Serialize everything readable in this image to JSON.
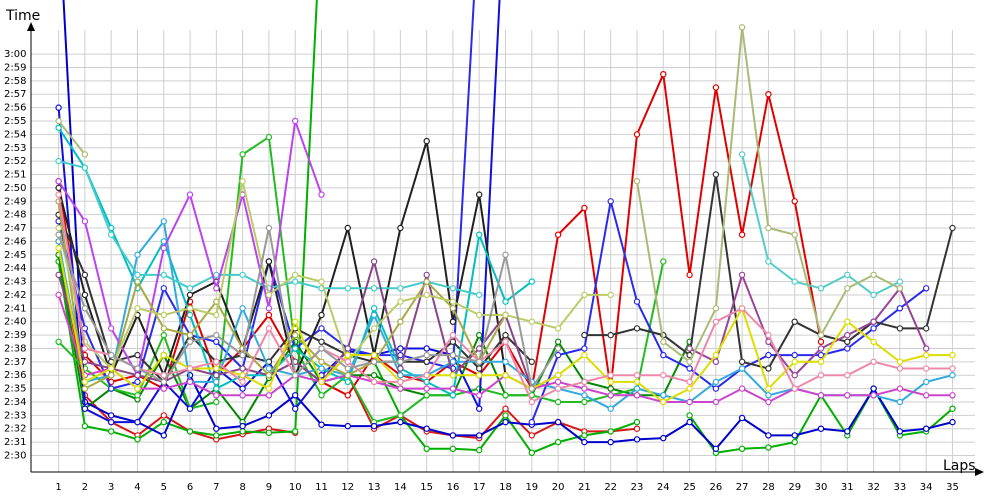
{
  "chart_data": {
    "type": "line",
    "ylabel": "Time",
    "xlabel": "Laps",
    "x": [
      1,
      2,
      3,
      4,
      5,
      6,
      7,
      8,
      9,
      10,
      11,
      12,
      13,
      14,
      15,
      16,
      17,
      18,
      19,
      20,
      21,
      22,
      23,
      24,
      25,
      26,
      27,
      28,
      29,
      30,
      31,
      32,
      33,
      34,
      35
    ],
    "y_tick_labels": [
      "2:30",
      "2:31",
      "2:32",
      "2:33",
      "2:34",
      "2:35",
      "2:36",
      "2:37",
      "2:38",
      "2:39",
      "2:40",
      "2:41",
      "2:42",
      "2:43",
      "2:44",
      "2:45",
      "2:46",
      "2:47",
      "2:48",
      "2:49",
      "2:50",
      "2:51",
      "2:52",
      "2:53",
      "2:54",
      "2:55",
      "2:56",
      "2:57",
      "2:58",
      "2:59",
      "3:00"
    ],
    "ylim_seconds": [
      150,
      180
    ],
    "grid": true,
    "series": [
      {
        "color": "#e00000",
        "values": [
          170.5,
          157.5,
          155.5,
          156,
          155,
          161.5,
          156,
          158,
          160.5,
          157,
          155.5,
          154.5,
          157.5,
          156,
          155.5,
          157,
          156,
          158.5,
          155,
          166.5,
          168.5,
          155,
          174,
          178.5,
          163.5,
          177.5,
          166.5,
          177,
          169,
          158.5,
          null,
          null,
          null,
          null,
          null
        ]
      },
      {
        "color": "#d81818",
        "values": [
          166,
          154.5,
          152.5,
          151.5,
          153,
          151.8,
          151.2,
          151.6,
          152,
          151.7,
          null,
          156,
          152,
          153,
          151.8,
          151.5,
          151.3,
          153.5,
          151.5,
          152.5,
          151.8,
          151.8,
          152,
          null,
          null,
          null,
          null,
          null,
          null,
          null,
          null,
          null,
          null,
          null,
          null
        ]
      },
      {
        "color": "#00b000",
        "values": [
          164.5,
          152.2,
          151.8,
          151.2,
          152.5,
          151.8,
          151.5,
          151.8,
          151.7,
          151.8,
          191,
          null,
          157,
          153,
          150.5,
          150.5,
          150.4,
          153,
          150.2,
          151,
          151.5,
          151.8,
          152.5,
          null,
          153,
          150.2,
          150.5,
          150.6,
          151,
          154.5,
          151.5,
          155,
          151.5,
          151.8,
          153.5
        ]
      },
      {
        "color": "#008800",
        "values": [
          165,
          153.5,
          155,
          154.2,
          157.5,
          153.5,
          155,
          152.5,
          155.8,
          158.5,
          155.5,
          156,
          156,
          155,
          154.5,
          154.5,
          159,
          154.5,
          154.5,
          158.5,
          155.5,
          155,
          154.5,
          154.5,
          158.5,
          null,
          null,
          null,
          null,
          null,
          null,
          null,
          null,
          null,
          null
        ]
      },
      {
        "color": "#22bb22",
        "values": [
          158.5,
          156.5,
          155,
          154.5,
          159,
          153.5,
          154,
          172.5,
          173.8,
          158,
          154.5,
          156,
          152.5,
          153,
          154.5,
          154.5,
          155,
          154.5,
          154.5,
          154,
          154,
          154.5,
          155,
          164.5,
          null,
          null,
          null,
          null,
          null,
          null,
          null,
          null,
          null,
          null,
          null
        ]
      },
      {
        "color": "#0000cc",
        "values": [
          191,
          154,
          153,
          152.5,
          151.5,
          156,
          152,
          152.2,
          153,
          154.5,
          152.3,
          152.2,
          152.2,
          152.5,
          152,
          151.5,
          151.5,
          152.5,
          152.3,
          152.5,
          151,
          151,
          151.2,
          151.3,
          152.5,
          150.5,
          152.8,
          151.5,
          151.5,
          152,
          151.8,
          155,
          151.8,
          152,
          152.5
        ]
      },
      {
        "color": "#1010dd",
        "values": [
          176,
          153.5,
          152.5,
          152.5,
          155.5,
          153.5,
          156.5,
          155,
          157,
          153.5,
          156,
          157.8,
          157.5,
          158,
          158,
          157.5,
          153.5,
          193,
          null,
          null,
          null,
          null,
          null,
          null,
          null,
          null,
          null,
          null,
          null,
          null,
          null,
          null,
          null,
          null,
          null
        ]
      },
      {
        "color": "#2a2aee",
        "values": [
          167.5,
          159.5,
          155,
          155.5,
          162.5,
          159,
          158.5,
          156.5,
          164.5,
          158,
          159.5,
          158,
          157.5,
          157.5,
          157,
          156.5,
          191,
          null,
          152.5,
          157.5,
          158,
          169,
          161.5,
          157.5,
          156.5,
          155,
          156.5,
          157.5,
          157.5,
          157.5,
          158,
          159.5,
          161,
          162.5,
          null
        ]
      },
      {
        "color": "#202020",
        "values": [
          170,
          162,
          156,
          160.5,
          156,
          162,
          163,
          158,
          164.5,
          156,
          160.5,
          167,
          157.5,
          167,
          173.5,
          160,
          169.5,
          156,
          null,
          null,
          null,
          null,
          null,
          null,
          null,
          null,
          null,
          null,
          null,
          null,
          null,
          null,
          null,
          null,
          null
        ]
      },
      {
        "color": "#333333",
        "values": [
          168,
          163.5,
          157,
          157.5,
          155.5,
          159,
          157,
          157.5,
          157,
          159.5,
          158.5,
          157.5,
          157,
          157,
          157,
          158.5,
          156.5,
          159,
          157,
          null,
          159,
          159,
          159.5,
          159,
          157.5,
          171,
          157,
          156.5,
          160,
          159,
          158.5,
          160,
          159.5,
          159.5,
          167
        ]
      },
      {
        "color": "#00c0c0",
        "values": [
          174.5,
          171.5,
          167,
          162.5,
          166,
          160.5,
          155,
          156,
          156,
          158,
          156.5,
          155.5,
          161,
          156.5,
          155.5,
          154.5,
          166.5,
          161.5,
          163,
          null,
          null,
          null,
          null,
          null,
          null,
          null,
          null,
          null,
          null,
          null,
          null,
          null,
          null,
          null,
          null
        ]
      },
      {
        "color": "#33aadd",
        "values": [
          166,
          155.5,
          156,
          165,
          167.5,
          155.5,
          155.5,
          161,
          156.5,
          156,
          156.5,
          156,
          160.5,
          156,
          156,
          157,
          157,
          157,
          155.5,
          155,
          154.5,
          153.5,
          155,
          154.5,
          154,
          155.5,
          156.5,
          154.5,
          155,
          154.5,
          154.5,
          154.5,
          154,
          155.5,
          156
        ]
      },
      {
        "color": "#44cccc",
        "values": [
          172,
          171.5,
          166.5,
          163.5,
          163.5,
          162.5,
          163.5,
          163.5,
          162.5,
          163,
          162.5,
          162.5,
          162.5,
          162.5,
          163,
          162.5,
          162,
          null,
          null,
          null,
          null,
          null,
          null,
          null,
          null,
          null,
          null,
          null,
          null,
          null,
          null,
          null,
          null,
          null,
          null
        ]
      },
      {
        "color": "#55cccc",
        "values": [
          null,
          null,
          null,
          null,
          null,
          null,
          null,
          null,
          null,
          null,
          null,
          null,
          null,
          null,
          null,
          null,
          null,
          null,
          null,
          null,
          null,
          null,
          null,
          null,
          null,
          null,
          172.5,
          164.5,
          163,
          162.5,
          163.5,
          162,
          163,
          null,
          null
        ]
      },
      {
        "color": "#bb44ee",
        "values": [
          170.5,
          167.5,
          159.5,
          156,
          165.5,
          169.5,
          162.5,
          169.5,
          161,
          175,
          169.5,
          null,
          null,
          null,
          null,
          null,
          null,
          null,
          null,
          null,
          null,
          null,
          null,
          null,
          null,
          null,
          null,
          null,
          null,
          null,
          null,
          null,
          null,
          null,
          null
        ]
      },
      {
        "color": "#cc44cc",
        "values": [
          162,
          156,
          156.5,
          155,
          155,
          155.5,
          154.5,
          154.5,
          154.5,
          156,
          155.5,
          156,
          155.5,
          155,
          155,
          155,
          154.5,
          156,
          155,
          155.5,
          155,
          154.5,
          154.5,
          154,
          154,
          154,
          155,
          154,
          155,
          154.5,
          154.5,
          154.5,
          155,
          154.5,
          154.5
        ]
      },
      {
        "color": "#884488",
        "values": [
          163.5,
          157,
          156.5,
          156,
          155.5,
          156.5,
          156,
          156.5,
          156,
          157,
          155.5,
          158,
          164.5,
          156.5,
          163.5,
          156,
          158,
          160.5,
          155,
          156,
          null,
          null,
          null,
          null,
          null,
          null,
          null,
          null,
          null,
          null,
          null,
          null,
          null,
          null,
          null
        ]
      },
      {
        "color": "#994499",
        "values": [
          null,
          null,
          null,
          null,
          null,
          null,
          null,
          null,
          null,
          null,
          null,
          null,
          null,
          null,
          null,
          null,
          null,
          null,
          null,
          null,
          null,
          null,
          null,
          null,
          158,
          157,
          163.5,
          158.5,
          156,
          158,
          159,
          160,
          162.5,
          158,
          null
        ]
      },
      {
        "color": "#aaaa44",
        "values": [
          169,
          155,
          156,
          163,
          159.5,
          159,
          161.5,
          158,
          156,
          159,
          157,
          156,
          157,
          160,
          163,
          161,
          157,
          160.5,
          null,
          null,
          null,
          null,
          null,
          null,
          null,
          null,
          null,
          null,
          null,
          null,
          null,
          null,
          null,
          null,
          null
        ]
      },
      {
        "color": "#aabb77",
        "values": [
          175,
          172.5,
          null,
          null,
          null,
          null,
          null,
          null,
          null,
          null,
          null,
          null,
          null,
          null,
          null,
          null,
          null,
          null,
          null,
          null,
          null,
          null,
          170.5,
          158.5,
          157,
          161,
          182,
          167,
          166.5,
          159,
          162.5,
          163.5,
          162.5,
          null,
          null
        ]
      },
      {
        "color": "#bbcc66",
        "values": [
          167,
          158.5,
          156.5,
          161,
          160.5,
          161,
          160.5,
          170.5,
          162,
          163.5,
          163,
          157,
          159.5,
          161.5,
          162,
          161.5,
          160.5,
          160.5,
          160,
          159.5,
          162,
          162,
          null,
          null,
          null,
          null,
          null,
          null,
          null,
          null,
          null,
          null,
          null,
          null,
          null
        ]
      },
      {
        "color": "#dddd00",
        "values": [
          165.5,
          155.5,
          156.5,
          155,
          157.5,
          156.5,
          156.5,
          156,
          155,
          160,
          155.5,
          157.5,
          157.5,
          155.5,
          156,
          156,
          156,
          156,
          155,
          156,
          157.5,
          155.5,
          155.5,
          154,
          155,
          157.5,
          161,
          155,
          157,
          157,
          160,
          158.5,
          157,
          157.5,
          157.5
        ]
      },
      {
        "color": "#ee88aa",
        "values": [
          169.5,
          158,
          157.5,
          156.5,
          156,
          156.5,
          157,
          155.5,
          159.5,
          156,
          158,
          157,
          155.5,
          155.5,
          156,
          159,
          157,
          158.5,
          154,
          155,
          155.5,
          156,
          156,
          156,
          155.5,
          160,
          161,
          159,
          155,
          156,
          156,
          157,
          156.5,
          156.5,
          156.5
        ]
      },
      {
        "color": "#999999",
        "values": [
          166.5,
          161,
          157.5,
          156.5,
          155.5,
          158.5,
          159,
          157.5,
          167,
          156,
          158,
          156.5,
          157,
          157,
          157.5,
          157.5,
          157,
          165,
          155,
          158,
          null,
          null,
          null,
          null,
          null,
          null,
          null,
          null,
          null,
          null,
          null,
          null,
          null,
          null,
          null
        ]
      }
    ]
  }
}
